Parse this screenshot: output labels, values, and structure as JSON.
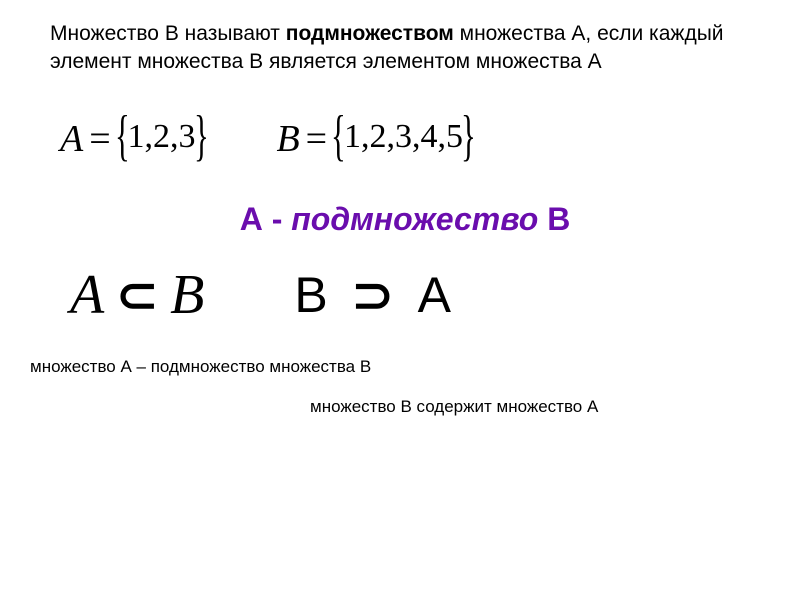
{
  "definition": {
    "pre": "Множество В называют ",
    "bold": "подмножеством",
    "post": " множества А, если каждый элемент множества В является элементом множества А"
  },
  "setA": {
    "name": "A",
    "content": "1,2,3"
  },
  "setB": {
    "name": "B",
    "content": "1,2,3,4,5"
  },
  "statement": {
    "aPart": "А",
    "dashPart": " - ",
    "subsetWord": "подмножество",
    "bPart": " В"
  },
  "rel1": {
    "left": "A",
    "sym": "⊂",
    "right": "B"
  },
  "rel2": {
    "left": "B",
    "sym": "⊃",
    "right": "A"
  },
  "caption1": "множество А – подмножество множества В",
  "caption2": "множество В содержит множество А",
  "colors": {
    "purple": "#6a0dad",
    "text": "#000000",
    "bg": "#ffffff"
  },
  "fontsizes": {
    "definition": 21,
    "setExpr": 38,
    "brace": 56,
    "setContent": 34,
    "statement": 32,
    "subset": 56,
    "caption": 17
  }
}
